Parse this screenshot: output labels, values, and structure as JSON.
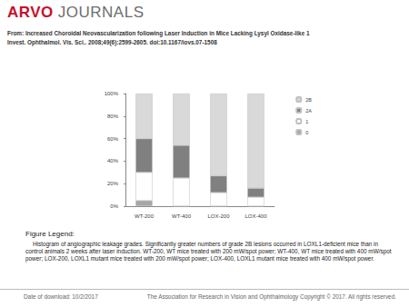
{
  "header": {
    "logo_left": "ARVO",
    "logo_right": "JOURNALS",
    "line1": "From: Increased Choroidal Neovascularization following Laser Induction in Mice Lacking Lysyl Oxidase-like 1",
    "line2": "Invest. Ophthalmol. Vis. Sci.. 2008;49(6):2599-2605. doi:10.1167/iovs.07-1508"
  },
  "chart_data": {
    "type": "bar",
    "stacked": true,
    "grid": false,
    "legend": "right",
    "categories": [
      "WT-200",
      "WT-400",
      "LOX-200",
      "LOX-400"
    ],
    "series": [
      {
        "name": "0",
        "color": "#a6a6a6",
        "values": [
          5,
          0,
          0,
          0
        ]
      },
      {
        "name": "1",
        "color": "#ffffff",
        "values": [
          25,
          25,
          12,
          8
        ]
      },
      {
        "name": "2A",
        "color": "#808080",
        "values": [
          30,
          29,
          15,
          8
        ]
      },
      {
        "name": "2B",
        "color": "#d9d9d9",
        "values": [
          40,
          46,
          73,
          84
        ]
      }
    ],
    "ylim": [
      0,
      100
    ],
    "yticks": [
      {
        "value": 0,
        "label": "0%"
      },
      {
        "value": 20,
        "label": "20%"
      },
      {
        "value": 40,
        "label": "40%"
      },
      {
        "value": 60,
        "label": "60%"
      },
      {
        "value": 80,
        "label": "80%"
      },
      {
        "value": 100,
        "label": "100%"
      }
    ]
  },
  "figure_legend": {
    "heading": "Figure Legend:",
    "text": "Histogram of angiographic leakage grades. Significantly greater numbers of grade 2B lesions occurred in LOXL1-deficient mice than in control animals 2 weeks after laser induction. WT-200, WT mice treated with 200 mW/spot power; WT-400, WT mice treated with 400 mW/spot power; LOX-200, LOXL1 mutant mice treated with 200 mW/spot power; LOX-400, LOXL1 mutant mice treated with 400 mW/spot power."
  },
  "footer": {
    "left": "Date of download: 10/2/2017",
    "right": "The Association for Research in Vision and Ophthalmology Copyright © 2017. All rights reserved."
  }
}
